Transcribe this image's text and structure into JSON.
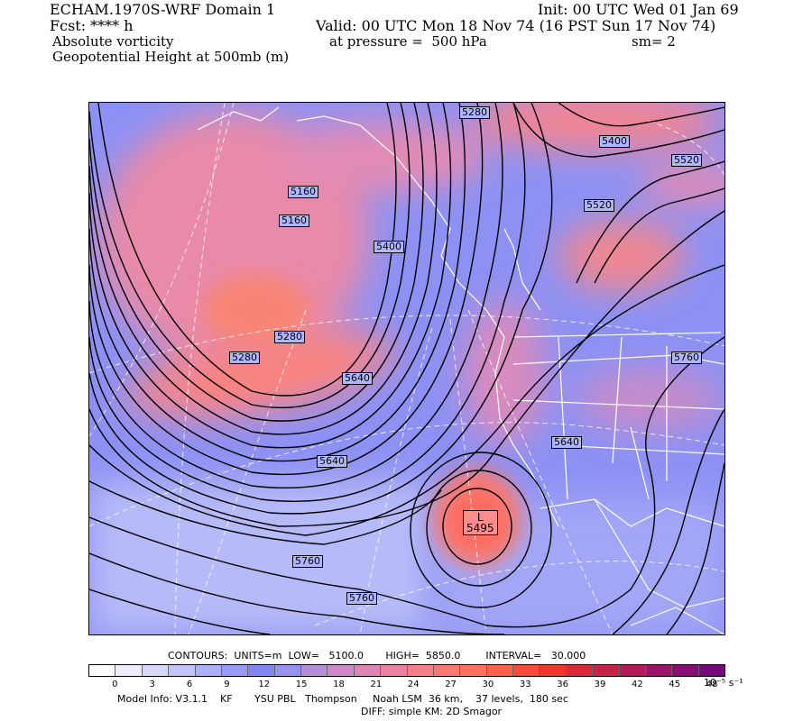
{
  "header": {
    "title": "ECHAM.1970S-WRF Domain 1",
    "init": "Init: 00 UTC Wed 01 Jan 69",
    "fcst": "Fcst: **** h",
    "valid": "Valid: 00 UTC Mon 18 Nov 74 (16 PST Sun 17 Nov 74)",
    "field1": "Absolute vorticity",
    "pressure": "at pressure =  500 hPa",
    "sm": "sm= 2",
    "field2": "Geopotential Height at 500mb (m)"
  },
  "map": {
    "contour_labels": [
      "5280",
      "5400",
      "5520",
      "5160",
      "5160",
      "5400",
      "5280",
      "5280",
      "5520",
      "5640",
      "5640",
      "5640",
      "5760",
      "5760",
      "5760"
    ],
    "low_label": {
      "letter": "L",
      "value": "5495"
    }
  },
  "contours_info": {
    "text": "CONTOURS:  UNITS=m  LOW=   5100.0       HIGH=  5850.0        INTERVAL=   30.000"
  },
  "colorbar": {
    "colors": [
      "#ffffff",
      "#ececfc",
      "#d6d8fb",
      "#c1c3fa",
      "#acaff8",
      "#979bf6",
      "#8287f4",
      "#9892ea",
      "#b48ed9",
      "#cc88c8",
      "#dd85b4",
      "#ea829f",
      "#f47f88",
      "#fa7a73",
      "#ff715f",
      "#ff604c",
      "#f94a3b",
      "#ee362e",
      "#dc2a3a",
      "#c92248",
      "#b31b58",
      "#9a1666",
      "#861173",
      "#750b7b"
    ],
    "ticks": [
      "0",
      "3",
      "6",
      "9",
      "12",
      "15",
      "18",
      "21",
      "24",
      "27",
      "30",
      "33",
      "36",
      "39",
      "42",
      "45",
      "48"
    ],
    "units": "10⁻⁵ s⁻¹"
  },
  "footer": {
    "model_info": "Model Info: V3.1.1    KF       YSU PBL   Thompson     Noah LSM  36 km,    37 levels,  180 sec",
    "diff": "DIFF: simple KM: 2D Smagor"
  }
}
